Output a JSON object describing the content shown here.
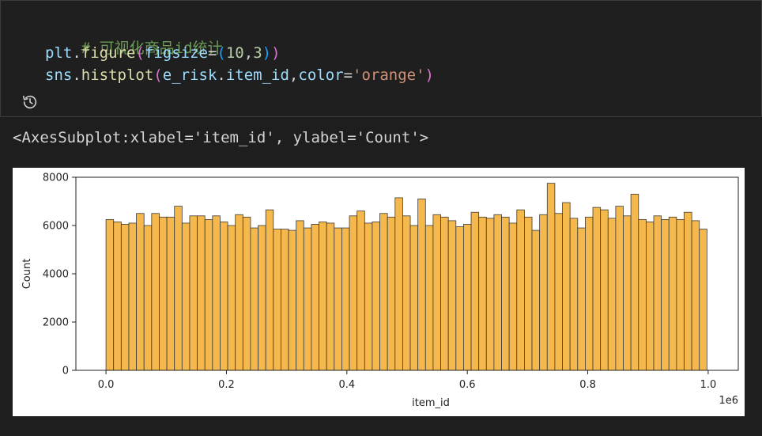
{
  "cell": {
    "comment": "# 可视化商品id统计",
    "line2": {
      "obj": "plt",
      "dot": ".",
      "func": "figure",
      "open": "(",
      "kw": "figsize",
      "eq": "=",
      "topen": "(",
      "n1": "10",
      "comma": ",",
      "n2": "3",
      "tclose": ")",
      "close": ")"
    },
    "line3": {
      "obj": "sns",
      "dot": ".",
      "func": "histplot",
      "open": "(",
      "arg_obj": "e_risk",
      "dot2": ".",
      "arg_attr": "item_id",
      "comma": ",",
      "kw": "color",
      "eq": "=",
      "str": "'orange'",
      "close": ")"
    },
    "history_icon": "history-icon"
  },
  "output": {
    "text": "<AxesSubplot:xlabel='item_id', ylabel='Count'>"
  },
  "chart_data": {
    "type": "bar",
    "title": "",
    "xlabel": "item_id",
    "ylabel": "Count",
    "x_offset_label": "1e6",
    "xlim": [
      -0.05,
      1.05
    ],
    "ylim": [
      0,
      8000
    ],
    "xticks": [
      "0.0",
      "0.2",
      "0.4",
      "0.6",
      "0.8",
      "1.0"
    ],
    "yticks": [
      "0",
      "2000",
      "4000",
      "6000",
      "8000"
    ],
    "bin_start": 0.0,
    "bin_end": 0.998,
    "fill_color": "#f5b84c",
    "edge_color": "#3a3a3a",
    "grid": false,
    "values": [
      6250,
      6150,
      6050,
      6100,
      6500,
      6000,
      6500,
      6350,
      6350,
      6800,
      6100,
      6400,
      6400,
      6250,
      6400,
      6150,
      6000,
      6450,
      6350,
      5900,
      6000,
      6650,
      5850,
      5850,
      5800,
      6200,
      5900,
      6050,
      6150,
      6100,
      5900,
      5900,
      6400,
      6600,
      6100,
      6150,
      6500,
      6350,
      7150,
      6400,
      6000,
      7100,
      6000,
      6450,
      6350,
      6200,
      5950,
      6050,
      6550,
      6350,
      6300,
      6450,
      6350,
      6100,
      6650,
      6350,
      5800,
      6450,
      7750,
      6500,
      6950,
      6300,
      5900,
      6350,
      6750,
      6650,
      6300,
      6800,
      6400,
      7300,
      6250,
      6150,
      6400,
      6250,
      6350,
      6250,
      6550,
      6200,
      5850
    ]
  }
}
